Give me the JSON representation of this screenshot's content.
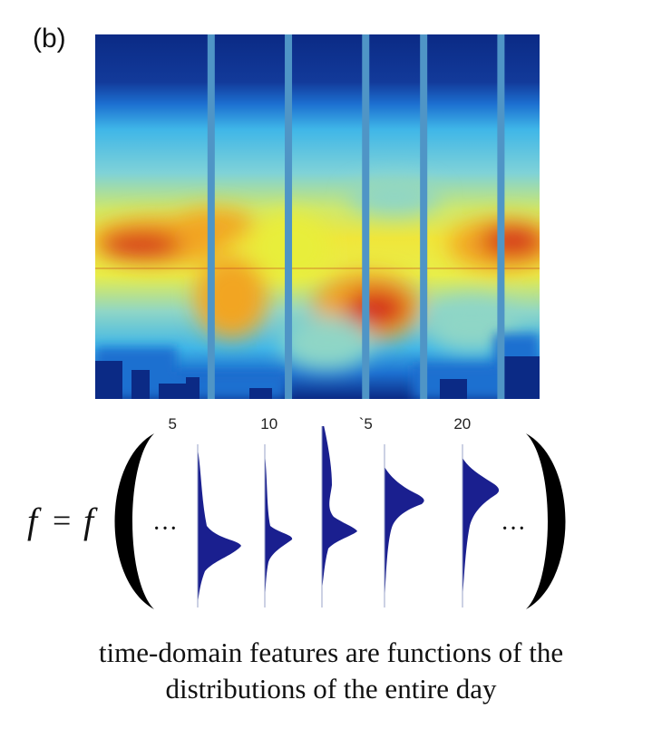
{
  "panel_label": "(b)",
  "x_ticks": [
    "5",
    "10",
    "`5",
    "20"
  ],
  "x_tick_values": [
    5,
    10,
    15,
    20
  ],
  "x_range": [
    1,
    24
  ],
  "gaps_at_hour": [
    7,
    11,
    15,
    18,
    22
  ],
  "colormap": [
    "#0b2a85",
    "#1c6fd0",
    "#3fb6e8",
    "#8fd6c6",
    "#e8ee3a",
    "#f2a524",
    "#d5331b"
  ],
  "formula": {
    "lhs": "f",
    "equals": "=",
    "fn": "f",
    "ellipsis_left": "···",
    "ellipsis_right": "···",
    "distribution_color": "#1a1f8f"
  },
  "caption": {
    "line1": "time-domain features are functions of the",
    "line2": "distributions of the entire day"
  }
}
